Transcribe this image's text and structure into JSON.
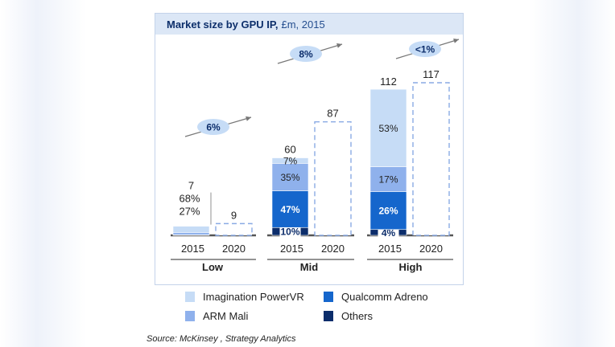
{
  "chart_data": {
    "type": "bar",
    "title": "Market size by GPU IP,",
    "unit": "£m, 2015",
    "groups": [
      {
        "name": "Low",
        "growth": "6%",
        "bars": [
          {
            "year": "2015",
            "total": 7,
            "segments": [
              {
                "series": "Others",
                "share": 5
              },
              {
                "series": "Qualcomm Adreno",
                "share": 0
              },
              {
                "series": "ARM Mali",
                "share": 27,
                "label": "27%"
              },
              {
                "series": "Imagination PowerVR",
                "share": 68,
                "label": "68%"
              }
            ]
          },
          {
            "year": "2020",
            "total": 9,
            "projected": true
          }
        ]
      },
      {
        "name": "Mid",
        "growth": "8%",
        "bars": [
          {
            "year": "2015",
            "total": 60,
            "segments": [
              {
                "series": "Others",
                "share": 10,
                "label": "10%"
              },
              {
                "series": "Qualcomm Adreno",
                "share": 47,
                "label": "47%"
              },
              {
                "series": "ARM Mali",
                "share": 35,
                "label": "35%"
              },
              {
                "series": "Imagination PowerVR",
                "share": 7,
                "label": "7%"
              }
            ]
          },
          {
            "year": "2020",
            "total": 87,
            "projected": true
          }
        ]
      },
      {
        "name": "High",
        "growth": "<1%",
        "bars": [
          {
            "year": "2015",
            "total": 112,
            "segments": [
              {
                "series": "Others",
                "share": 4,
                "label": "4%"
              },
              {
                "series": "Qualcomm Adreno",
                "share": 26,
                "label": "26%"
              },
              {
                "series": "ARM Mali",
                "share": 17,
                "label": "17%"
              },
              {
                "series": "Imagination PowerVR",
                "share": 53,
                "label": "53%"
              }
            ]
          },
          {
            "year": "2020",
            "total": 117,
            "projected": true
          }
        ]
      }
    ],
    "legend": [
      {
        "name": "Imagination PowerVR",
        "color": "#c6dcf6"
      },
      {
        "name": "Qualcomm Adreno",
        "color": "#1566cc"
      },
      {
        "name": "ARM Mali",
        "color": "#8fb1ec"
      },
      {
        "name": "Others",
        "color": "#0c2d6b"
      }
    ],
    "colors": {
      "Imagination PowerVR": "#c6dcf6",
      "ARM Mali": "#8fb1ec",
      "Qualcomm Adreno": "#1566cc",
      "Others": "#0c2d6b",
      "projected_outline": "#8aaae4",
      "growth_bubble": "#c6dcf6",
      "arrow": "#777777"
    },
    "ylim": [
      0,
      117
    ]
  },
  "source": "Source: McKinsey , Strategy Analytics"
}
